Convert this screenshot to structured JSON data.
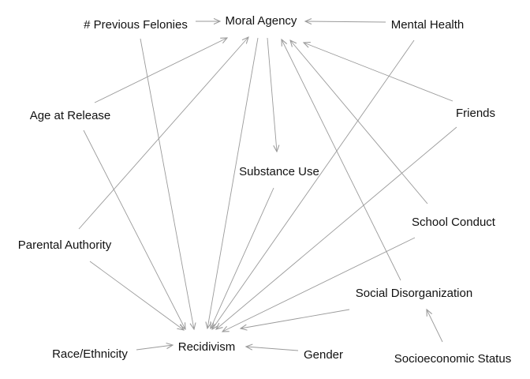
{
  "nodes": [
    {
      "id": "moral_agency",
      "label": "Moral Agency"
    },
    {
      "id": "prev_felonies",
      "label": "# Previous Felonies"
    },
    {
      "id": "mental_health",
      "label": "Mental Health"
    },
    {
      "id": "age_release",
      "label": "Age at Release"
    },
    {
      "id": "friends",
      "label": "Friends"
    },
    {
      "id": "substance_use",
      "label": "Substance Use"
    },
    {
      "id": "school_conduct",
      "label": "School Conduct"
    },
    {
      "id": "parental_authority",
      "label": "Parental Authority"
    },
    {
      "id": "social_disorg",
      "label": "Social Disorganization"
    },
    {
      "id": "race",
      "label": "Race/Ethnicity"
    },
    {
      "id": "recidivism",
      "label": "Recidivism"
    },
    {
      "id": "gender",
      "label": "Gender"
    },
    {
      "id": "ses",
      "label": "Socioeconomic Status"
    }
  ],
  "edges": [
    {
      "from": "prev_felonies",
      "to": "moral_agency"
    },
    {
      "from": "mental_health",
      "to": "moral_agency"
    },
    {
      "from": "age_release",
      "to": "moral_agency"
    },
    {
      "from": "parental_authority",
      "to": "moral_agency"
    },
    {
      "from": "friends",
      "to": "moral_agency"
    },
    {
      "from": "school_conduct",
      "to": "moral_agency"
    },
    {
      "from": "social_disorg",
      "to": "moral_agency"
    },
    {
      "from": "moral_agency",
      "to": "substance_use"
    },
    {
      "from": "moral_agency",
      "to": "recidivism"
    },
    {
      "from": "prev_felonies",
      "to": "recidivism"
    },
    {
      "from": "age_release",
      "to": "recidivism"
    },
    {
      "from": "mental_health",
      "to": "recidivism"
    },
    {
      "from": "friends",
      "to": "recidivism"
    },
    {
      "from": "substance_use",
      "to": "recidivism"
    },
    {
      "from": "school_conduct",
      "to": "recidivism"
    },
    {
      "from": "parental_authority",
      "to": "recidivism"
    },
    {
      "from": "social_disorg",
      "to": "recidivism"
    },
    {
      "from": "race",
      "to": "recidivism"
    },
    {
      "from": "gender",
      "to": "recidivism"
    },
    {
      "from": "ses",
      "to": "social_disorg"
    }
  ],
  "colors": {
    "edge": "#9a9a9a",
    "label": "#111111",
    "background": "#ffffff"
  }
}
